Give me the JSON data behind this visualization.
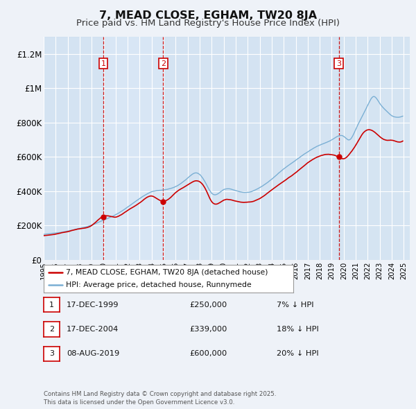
{
  "title": "7, MEAD CLOSE, EGHAM, TW20 8JA",
  "subtitle": "Price paid vs. HM Land Registry's House Price Index (HPI)",
  "title_fontsize": 11.5,
  "subtitle_fontsize": 9.5,
  "bg_color": "#eef2f8",
  "plot_bg_color": "#dce8f5",
  "grid_color": "#ffffff",
  "ylim": [
    0,
    1300000
  ],
  "yticks": [
    0,
    200000,
    400000,
    600000,
    800000,
    1000000,
    1200000
  ],
  "ytick_labels": [
    "£0",
    "£200K",
    "£400K",
    "£600K",
    "£800K",
    "£1M",
    "£1.2M"
  ],
  "xlim_start": 1995.0,
  "xlim_end": 2025.5,
  "sale_dates": [
    1999.96,
    2004.96,
    2019.58
  ],
  "sale_prices": [
    250000,
    339000,
    600000
  ],
  "sale_labels": [
    "1",
    "2",
    "3"
  ],
  "sale_color": "#cc0000",
  "hpi_color": "#7aafd4",
  "vline_color": "#cc0000",
  "legend_label_red": "7, MEAD CLOSE, EGHAM, TW20 8JA (detached house)",
  "legend_label_blue": "HPI: Average price, detached house, Runnymede",
  "table_entries": [
    {
      "label": "1",
      "date": "17-DEC-1999",
      "price": "£250,000",
      "note": "7% ↓ HPI"
    },
    {
      "label": "2",
      "date": "17-DEC-2004",
      "price": "£339,000",
      "note": "18% ↓ HPI"
    },
    {
      "label": "3",
      "date": "08-AUG-2019",
      "price": "£600,000",
      "note": "20% ↓ HPI"
    }
  ],
  "footer": "Contains HM Land Registry data © Crown copyright and database right 2025.\nThis data is licensed under the Open Government Licence v3.0."
}
